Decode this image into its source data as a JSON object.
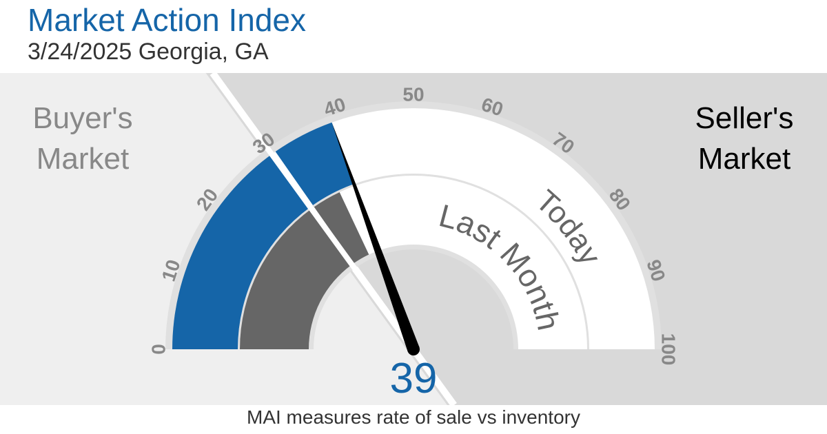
{
  "header": {
    "title": "Market Action Index",
    "subtitle": "3/24/2025 Georgia, GA"
  },
  "zones": {
    "buyers": [
      "Buyer's",
      "Market"
    ],
    "sellers": [
      "Seller's",
      "Market"
    ]
  },
  "footer": "MAI measures rate of sale vs inventory",
  "colors": {
    "today": "#1565a8",
    "last_month": "#666666",
    "unfilled": "#ffffff",
    "buyer_bg": "#efefef",
    "seller_bg": "#d9d9d9",
    "needle": "#000000",
    "value_text": "#1565a8"
  },
  "chart_data": {
    "type": "gauge",
    "scale": [
      0,
      100
    ],
    "ticks": [
      0,
      10,
      20,
      30,
      40,
      50,
      60,
      70,
      80,
      90,
      100
    ],
    "threshold": 30,
    "series": [
      {
        "name": "Today",
        "value": 39
      },
      {
        "name": "Last Month",
        "value": 36
      }
    ],
    "value_label": "39"
  }
}
